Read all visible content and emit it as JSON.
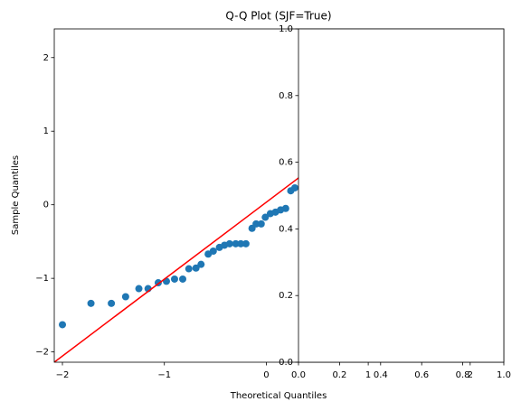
{
  "chart_data": [
    {
      "type": "scatter",
      "title": "Q-Q Plot (SJF=True)",
      "x_label": "Theoretical Quantiles",
      "y_label": "Sample Quantiles",
      "color": "#1f77b4",
      "line_color": "#ff0000",
      "x": [
        -2.0,
        -1.72,
        -1.52,
        -1.38,
        -1.25,
        -1.16,
        -1.06,
        -0.98,
        -0.9,
        -0.82,
        -0.76,
        -0.69,
        -0.64,
        -0.57,
        -0.52,
        -0.46,
        -0.41,
        -0.36,
        -0.3,
        -0.25,
        -0.2,
        -0.14,
        -0.1,
        -0.05,
        -0.01,
        0.04,
        0.09,
        0.14,
        0.19,
        0.24,
        0.28
      ],
      "values": [
        -1.63,
        -1.34,
        -1.34,
        -1.25,
        -1.14,
        -1.14,
        -1.06,
        -1.04,
        -1.01,
        -1.01,
        -0.87,
        -0.86,
        -0.81,
        -0.67,
        -0.63,
        -0.58,
        -0.55,
        -0.53,
        -0.53,
        -0.53,
        -0.53,
        -0.32,
        -0.26,
        -0.26,
        -0.17,
        -0.12,
        -0.1,
        -0.07,
        -0.05,
        0.19,
        0.23
      ],
      "reference_line": {
        "x": [
          -2.08,
          2.33
        ],
        "y": [
          -2.14,
          2.47
        ]
      },
      "xlim": [
        -2.08,
        2.33
      ],
      "ylim": [
        -2.14,
        2.39
      ],
      "xticks": [
        {
          "value": -2,
          "label": "−2"
        },
        {
          "value": -1,
          "label": "−1"
        },
        0,
        1,
        2
      ],
      "yticks": [
        {
          "value": -2,
          "label": "−2"
        },
        {
          "value": -1,
          "label": "−1"
        },
        0,
        1,
        2
      ]
    },
    {
      "type": "blank",
      "xlim": [
        0,
        1
      ],
      "ylim": [
        0,
        1
      ],
      "xticks": [
        {
          "value": 0,
          "label": "0.0"
        },
        0.2,
        0.4,
        0.6,
        0.8,
        {
          "value": 1,
          "label": "1.0"
        }
      ],
      "yticks": [
        {
          "value": 0,
          "label": "0.0"
        },
        0.2,
        0.4,
        0.6,
        0.8,
        {
          "value": 1,
          "label": "1.0"
        }
      ]
    }
  ]
}
